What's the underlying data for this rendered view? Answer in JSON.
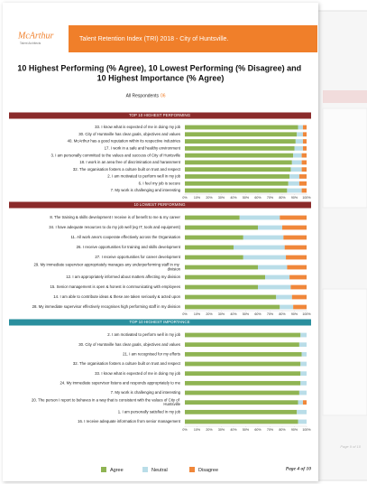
{
  "header": {
    "logo": "McArthur",
    "logo_tagline": "Talent Architects",
    "title": "Talent Retention Index (TRI) 2018 - City of Huntsville."
  },
  "title": "10 Highest Performing (% Agree), 10 Lowest Performing (% Disagree) and 10 Highest Importance (% Agree)",
  "respondents_label": "All Respondents",
  "respondents_count": "06",
  "footer": "Page 4 of 10",
  "back_page_footer": "Page 9 of 10",
  "chart_data": [
    {
      "type": "bar",
      "orientation": "horizontal",
      "stacked": true,
      "title": "TOP 10 HIGHEST PERFORMING",
      "title_background": "#8b2b2b",
      "categories": [
        "33. I know what is expected of me in doing my job",
        "30. City of Huntsville has clear goals, objectives and values",
        "40. McArthur has a good reputation within its respective industries",
        "17. I work in a safe and healthy environment",
        "3. I am personally committed to the values and success of City of Huntsville",
        "18. I work in an area free of discrimination and harassment",
        "32. The organisation fosters a culture built on trust and respect",
        "2. I am motivated to perform well in my job",
        "6. I feel my job is secure",
        "7. My work is challenging and interesting"
      ],
      "series": [
        {
          "name": "Agree",
          "color": "#8fb453",
          "values": [
            93,
            92,
            91,
            90,
            89,
            88,
            87,
            86,
            85,
            84
          ]
        },
        {
          "name": "Neutral",
          "color": "#b9dde8",
          "values": [
            4,
            5,
            6,
            7,
            7,
            8,
            9,
            8,
            9,
            12
          ]
        },
        {
          "name": "Disagree",
          "color": "#f0873a",
          "values": [
            3,
            3,
            3,
            3,
            4,
            4,
            4,
            6,
            6,
            4
          ]
        }
      ],
      "xlim": [
        0,
        100
      ],
      "xticks": [
        {
          "value": 0,
          "label": "0%"
        },
        {
          "value": 10,
          "label": "10%"
        },
        {
          "value": 20,
          "label": "20%"
        },
        {
          "value": 30,
          "label": "30%"
        },
        {
          "value": 40,
          "label": "40%"
        },
        {
          "value": 50,
          "label": "50%"
        },
        {
          "value": 60,
          "label": "60%"
        },
        {
          "value": 70,
          "label": "70%"
        },
        {
          "value": 80,
          "label": "80%"
        },
        {
          "value": 90,
          "label": "90%"
        },
        {
          "value": 100,
          "label": "100%"
        }
      ]
    },
    {
      "type": "bar",
      "orientation": "horizontal",
      "stacked": true,
      "title": "10 LOWEST PERFORMING",
      "title_background": "#8b2b2b",
      "categories": [
        "8. The training & skills development I receive is of benefit to me & my career",
        "34. I have adequate resources to do my job well (eg IT, tools and equipment)",
        "11. All work area's cooperate effectively across the Organisation",
        "26. I receive opportunities for training and skills development",
        "27. I receive opportunities for career development",
        "29. My immediate supervisor appropriately manages any underperforming staff in my division",
        "12. I am appropriately informed about matters affecting my division",
        "15. Senior management is open & honest in communicating with employees",
        "14. I am able to contribute ideas & these are taken seriously & acted upon",
        "28. My immediate supervisor effectively recognises high performing staff in my division"
      ],
      "series": [
        {
          "name": "Agree",
          "color": "#8fb453",
          "values": [
            45,
            60,
            48,
            40,
            48,
            60,
            66,
            60,
            75,
            78
          ]
        },
        {
          "name": "Neutral",
          "color": "#b9dde8",
          "values": [
            33,
            20,
            33,
            42,
            35,
            24,
            20,
            27,
            13,
            11
          ]
        },
        {
          "name": "Disagree",
          "color": "#f0873a",
          "values": [
            22,
            20,
            19,
            18,
            17,
            16,
            14,
            13,
            12,
            11
          ]
        }
      ],
      "xlim": [
        0,
        100
      ],
      "xticks": [
        {
          "value": 0,
          "label": "0%"
        },
        {
          "value": 10,
          "label": "10%"
        },
        {
          "value": 20,
          "label": "20%"
        },
        {
          "value": 30,
          "label": "30%"
        },
        {
          "value": 40,
          "label": "40%"
        },
        {
          "value": 50,
          "label": "50%"
        },
        {
          "value": 60,
          "label": "60%"
        },
        {
          "value": 70,
          "label": "70%"
        },
        {
          "value": 80,
          "label": "80%"
        },
        {
          "value": 90,
          "label": "90%"
        },
        {
          "value": 100,
          "label": "100%"
        }
      ]
    },
    {
      "type": "bar",
      "orientation": "horizontal",
      "stacked": true,
      "title": "TOP 10 HIGHEST IMPORTANCE",
      "title_background": "#2a8f9e",
      "categories": [
        "2. I am motivated to perform well in my job",
        "30. City of Huntsville has clear goals, objectives and values",
        "21. I am recognised for my efforts",
        "32. The organisation fosters a culture built on trust and respect",
        "33. I know what is expected of me in doing my job",
        "24. My immediate supervisor listens and responds appropriately to me",
        "7. My work is challenging and interesting",
        "20. The person I report to behaves in a way that is consistent with the values of City of Huntsville",
        "1. I am personally satisfied in my job",
        "16. I receive adequate information from senior management"
      ],
      "series": [
        {
          "name": "Agree",
          "color": "#8fb453",
          "values": [
            95,
            94,
            96,
            95,
            95,
            95,
            94,
            93,
            92,
            93
          ]
        },
        {
          "name": "Neutral",
          "color": "#b9dde8",
          "values": [
            5,
            6,
            4,
            5,
            5,
            5,
            6,
            4,
            8,
            7
          ]
        },
        {
          "name": "Disagree",
          "color": "#f0873a",
          "values": [
            0,
            0,
            0,
            0,
            0,
            0,
            0,
            3,
            0,
            0
          ]
        }
      ],
      "xlim": [
        0,
        100
      ],
      "xticks": [
        {
          "value": 0,
          "label": "0%"
        },
        {
          "value": 10,
          "label": "10%"
        },
        {
          "value": 20,
          "label": "20%"
        },
        {
          "value": 30,
          "label": "30%"
        },
        {
          "value": 40,
          "label": "40%"
        },
        {
          "value": 50,
          "label": "50%"
        },
        {
          "value": 60,
          "label": "60%"
        },
        {
          "value": 70,
          "label": "70%"
        },
        {
          "value": 80,
          "label": "80%"
        },
        {
          "value": 90,
          "label": "90%"
        },
        {
          "value": 100,
          "label": "100%"
        }
      ]
    }
  ]
}
